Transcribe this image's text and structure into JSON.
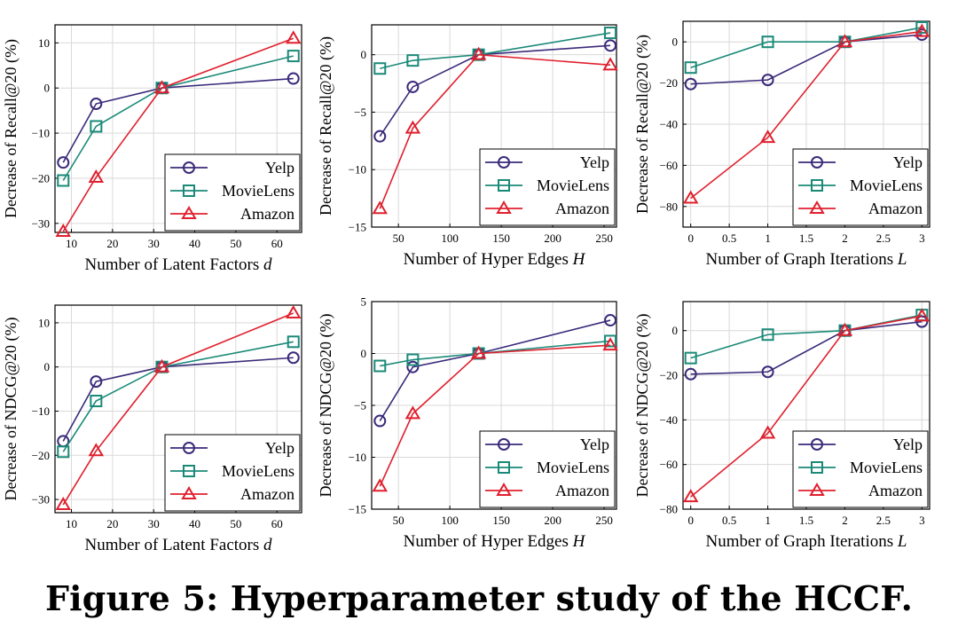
{
  "figure": {
    "caption": "Figure 5: Hyperparameter study of the HCCF.",
    "series_styles": [
      {
        "name": "Yelp",
        "color": "#3b2a7a",
        "marker": "circle"
      },
      {
        "name": "MovieLens",
        "color": "#1a8a78",
        "marker": "square"
      },
      {
        "name": "Amazon",
        "color": "#e0202e",
        "marker": "triangle"
      }
    ]
  },
  "chart_data": [
    {
      "type": "line",
      "xlabel": "Number of Latent Factors",
      "xlabel_var": "d",
      "ylabel": "Decrease of Recall@20 (%)",
      "xlim": [
        6,
        66
      ],
      "ylim": [
        -32,
        14
      ],
      "xticks": [
        10,
        20,
        30,
        40,
        50,
        60
      ],
      "yticks": [
        -30,
        -20,
        -10,
        0,
        10
      ],
      "grid": true,
      "legend": "bottom-right",
      "series": [
        {
          "name": "Yelp",
          "x": [
            8,
            16,
            32,
            64
          ],
          "y": [
            -16.5,
            -3.5,
            0,
            2.1
          ]
        },
        {
          "name": "MovieLens",
          "x": [
            8,
            16,
            32,
            64
          ],
          "y": [
            -20.5,
            -8.5,
            0,
            7.1
          ]
        },
        {
          "name": "Amazon",
          "x": [
            8,
            16,
            32,
            64
          ],
          "y": [
            -31.8,
            -19.8,
            0,
            11.0
          ]
        }
      ]
    },
    {
      "type": "line",
      "xlabel": "Number of Hyper Edges",
      "xlabel_var": "H",
      "ylabel": "Decrease of Recall@20 (%)",
      "xlim": [
        24,
        262
      ],
      "ylim": [
        -15,
        2.6
      ],
      "xticks": [
        50,
        100,
        150,
        200,
        250
      ],
      "yticks": [
        -15,
        -10,
        -5,
        0
      ],
      "grid": true,
      "legend": "bottom-right",
      "series": [
        {
          "name": "Yelp",
          "x": [
            32,
            64,
            128,
            256
          ],
          "y": [
            -7.1,
            -2.8,
            0,
            0.8
          ]
        },
        {
          "name": "MovieLens",
          "x": [
            32,
            64,
            128,
            256
          ],
          "y": [
            -1.2,
            -0.5,
            0,
            1.9
          ]
        },
        {
          "name": "Amazon",
          "x": [
            32,
            64,
            128,
            256
          ],
          "y": [
            -13.4,
            -6.4,
            0,
            -0.9
          ]
        }
      ]
    },
    {
      "type": "line",
      "xlabel": "Number of Graph Iterations",
      "xlabel_var": "L",
      "ylabel": "Decrease of Recall@20 (%)",
      "xlim": [
        -0.1,
        3.1
      ],
      "ylim": [
        -90,
        10
      ],
      "xticks": [
        0,
        0.5,
        1,
        1.5,
        2,
        2.5,
        3
      ],
      "yticks": [
        -80,
        -60,
        -40,
        -20,
        0
      ],
      "grid": true,
      "legend": "bottom-right",
      "series": [
        {
          "name": "Yelp",
          "x": [
            0,
            1,
            2,
            3
          ],
          "y": [
            -20.5,
            -18.5,
            0,
            3.5
          ]
        },
        {
          "name": "MovieLens",
          "x": [
            0,
            1,
            2,
            3
          ],
          "y": [
            -12.5,
            0,
            0,
            7.0
          ]
        },
        {
          "name": "Amazon",
          "x": [
            0,
            1,
            2,
            3
          ],
          "y": [
            -76,
            -46.5,
            0,
            5.0
          ]
        }
      ]
    },
    {
      "type": "line",
      "xlabel": "Number of Latent Factors",
      "xlabel_var": "d",
      "ylabel": "Decrease of NDCG@20 (%)",
      "xlim": [
        6,
        66
      ],
      "ylim": [
        -33,
        14
      ],
      "xticks": [
        10,
        20,
        30,
        40,
        50,
        60
      ],
      "yticks": [
        -30,
        -20,
        -10,
        0,
        10
      ],
      "grid": true,
      "legend": "bottom-right",
      "series": [
        {
          "name": "Yelp",
          "x": [
            8,
            16,
            32,
            64
          ],
          "y": [
            -16.8,
            -3.3,
            0,
            2.1
          ]
        },
        {
          "name": "MovieLens",
          "x": [
            8,
            16,
            32,
            64
          ],
          "y": [
            -19.2,
            -7.7,
            0,
            5.7
          ]
        },
        {
          "name": "Amazon",
          "x": [
            8,
            16,
            32,
            64
          ],
          "y": [
            -31.2,
            -19.0,
            0,
            12.2
          ]
        }
      ]
    },
    {
      "type": "line",
      "xlabel": "Number of Hyper Edges",
      "xlabel_var": "H",
      "ylabel": "Decrease of NDCG@20 (%)",
      "xlim": [
        24,
        262
      ],
      "ylim": [
        -15,
        5
      ],
      "xticks": [
        50,
        100,
        150,
        200,
        250
      ],
      "yticks": [
        -15,
        -10,
        -5,
        0,
        5
      ],
      "grid": true,
      "legend": "bottom-right",
      "series": [
        {
          "name": "Yelp",
          "x": [
            32,
            64,
            128,
            256
          ],
          "y": [
            -6.5,
            -1.3,
            0,
            3.2
          ]
        },
        {
          "name": "MovieLens",
          "x": [
            32,
            64,
            128,
            256
          ],
          "y": [
            -1.2,
            -0.6,
            0,
            1.2
          ]
        },
        {
          "name": "Amazon",
          "x": [
            32,
            64,
            128,
            256
          ],
          "y": [
            -12.8,
            -5.8,
            0,
            0.8
          ]
        }
      ]
    },
    {
      "type": "line",
      "xlabel": "Number of Graph Iterations",
      "xlabel_var": "L",
      "ylabel": "Decrease of NDCG@20 (%)",
      "xlim": [
        -0.1,
        3.1
      ],
      "ylim": [
        -80,
        13
      ],
      "xticks": [
        0,
        0.5,
        1,
        1.5,
        2,
        2.5,
        3
      ],
      "yticks": [
        -80,
        -60,
        -40,
        -20,
        0
      ],
      "grid": true,
      "legend": "bottom-right",
      "series": [
        {
          "name": "Yelp",
          "x": [
            0,
            1,
            2,
            3
          ],
          "y": [
            -19.5,
            -18.5,
            0,
            4.0
          ]
        },
        {
          "name": "MovieLens",
          "x": [
            0,
            1,
            2,
            3
          ],
          "y": [
            -12.3,
            -1.8,
            0,
            7.0
          ]
        },
        {
          "name": "Amazon",
          "x": [
            0,
            1,
            2,
            3
          ],
          "y": [
            -74.5,
            -46.0,
            0,
            6.5
          ]
        }
      ]
    }
  ]
}
